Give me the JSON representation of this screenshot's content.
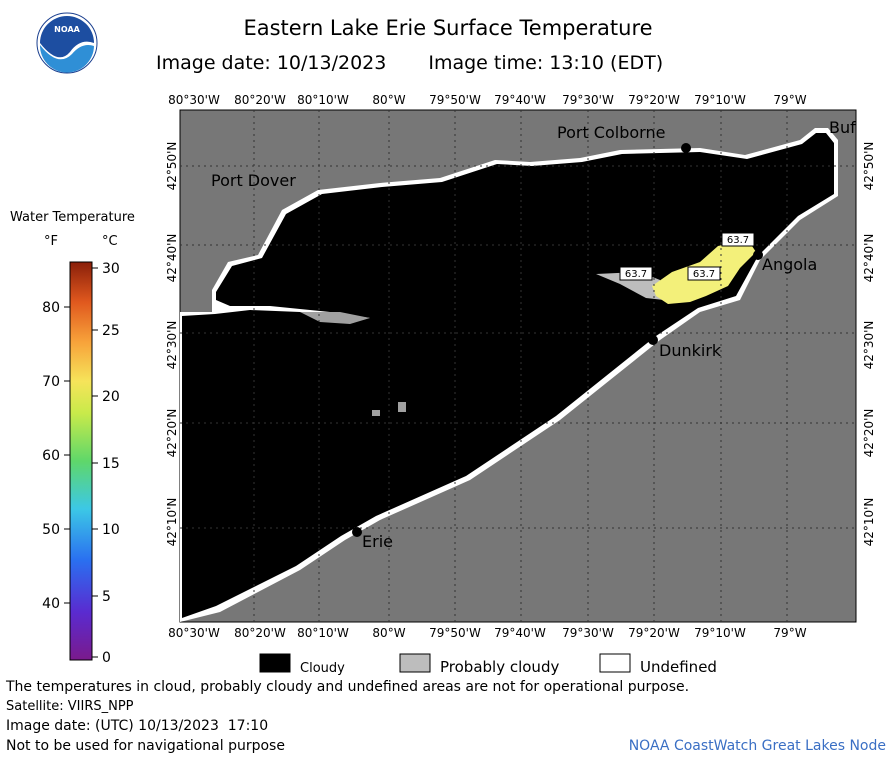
{
  "header": {
    "title": "Eastern Lake Erie Surface Temperature",
    "image_date_label": "Image date: 10/13/2023",
    "image_time_label": "Image time: 13:10 (EDT)",
    "logo_text": "NOAA"
  },
  "map": {
    "lon_ticks": [
      "80°30'W",
      "80°20'W",
      "80°10'W",
      "80°W",
      "79°50'W",
      "79°40'W",
      "79°30'W",
      "79°20'W",
      "79°10'W",
      "79°W"
    ],
    "lat_ticks": [
      "42°50'N",
      "42°40'N",
      "42°30'N",
      "42°20'N",
      "42°10'N"
    ],
    "places": [
      "Port Colborne",
      "Port Dover",
      "Buf",
      "Angola",
      "Dunkirk",
      "Erie"
    ],
    "temp_labels": [
      "63.7",
      "63.7",
      "63.7"
    ],
    "colors": {
      "land": "#777777",
      "cloud": "#000000",
      "probably_cloudy": "#bdbdbd",
      "undefined": "#ffffff",
      "warm_water": "#f3f07a"
    }
  },
  "legend": {
    "title": "Water Temperature",
    "unit_f": "°F",
    "unit_c": "°C",
    "f_ticks": [
      "80",
      "70",
      "60",
      "50",
      "40"
    ],
    "c_ticks": [
      "30",
      "25",
      "20",
      "15",
      "10",
      "5",
      "0"
    ]
  },
  "key": {
    "cloudy": "Cloudy",
    "probably_cloudy": "Probably cloudy",
    "undefined": "Undefined"
  },
  "footer": {
    "disclaimer": "The temperatures in cloud, probably cloudy and undefined areas are not for operational purpose.",
    "satellite": "Satellite: VIIRS_NPP",
    "utc_date": "Image date: (UTC) 10/13/2023  17:10",
    "navigation": "Not to be used for navigational purpose",
    "credit": "NOAA CoastWatch Great Lakes Node"
  }
}
